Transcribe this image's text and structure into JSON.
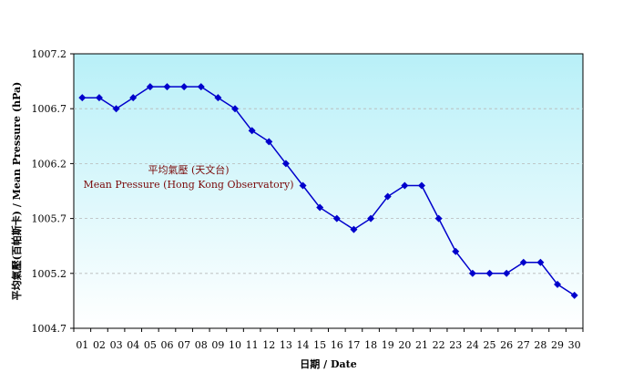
{
  "chart_data": {
    "type": "line",
    "xlabel": "日期 / Date",
    "ylabel": "平均氣壓(百帕斯卡) / Mean Pressure (hPa)",
    "categories": [
      "01",
      "02",
      "03",
      "04",
      "05",
      "06",
      "07",
      "08",
      "09",
      "10",
      "11",
      "12",
      "13",
      "14",
      "15",
      "16",
      "17",
      "18",
      "19",
      "20",
      "21",
      "22",
      "23",
      "24",
      "25",
      "26",
      "27",
      "28",
      "29",
      "30"
    ],
    "series": [
      {
        "values": [
          1006.8,
          1006.8,
          1006.7,
          1006.8,
          1006.9,
          1006.9,
          1006.9,
          1006.9,
          1006.8,
          1006.7,
          1006.5,
          1006.4,
          1006.2,
          1006.0,
          1005.8,
          1005.7,
          1005.6,
          1005.7,
          1005.9,
          1006.0,
          1006.0,
          1005.7,
          1005.4,
          1005.2,
          1005.2,
          1005.2,
          1005.3,
          1005.3,
          1005.1,
          1005.0
        ]
      }
    ],
    "ylim": [
      1004.7,
      1007.2
    ],
    "yticks": [
      "1007.2",
      "1006.7",
      "1006.2",
      "1005.7",
      "1005.2",
      "1004.7"
    ],
    "annotation": {
      "line1": "平均氣壓 (天文台)",
      "line2": "Mean Pressure (Hong Kong Observatory)"
    },
    "colors": {
      "line": "#0000cc",
      "marker": "#0000cc",
      "plot_top": "#b8f0f8",
      "plot_bottom": "#ffffff",
      "annotation": "#7a0a0a",
      "grid": "#b8b8b8"
    },
    "grid": true,
    "legend": "none"
  }
}
